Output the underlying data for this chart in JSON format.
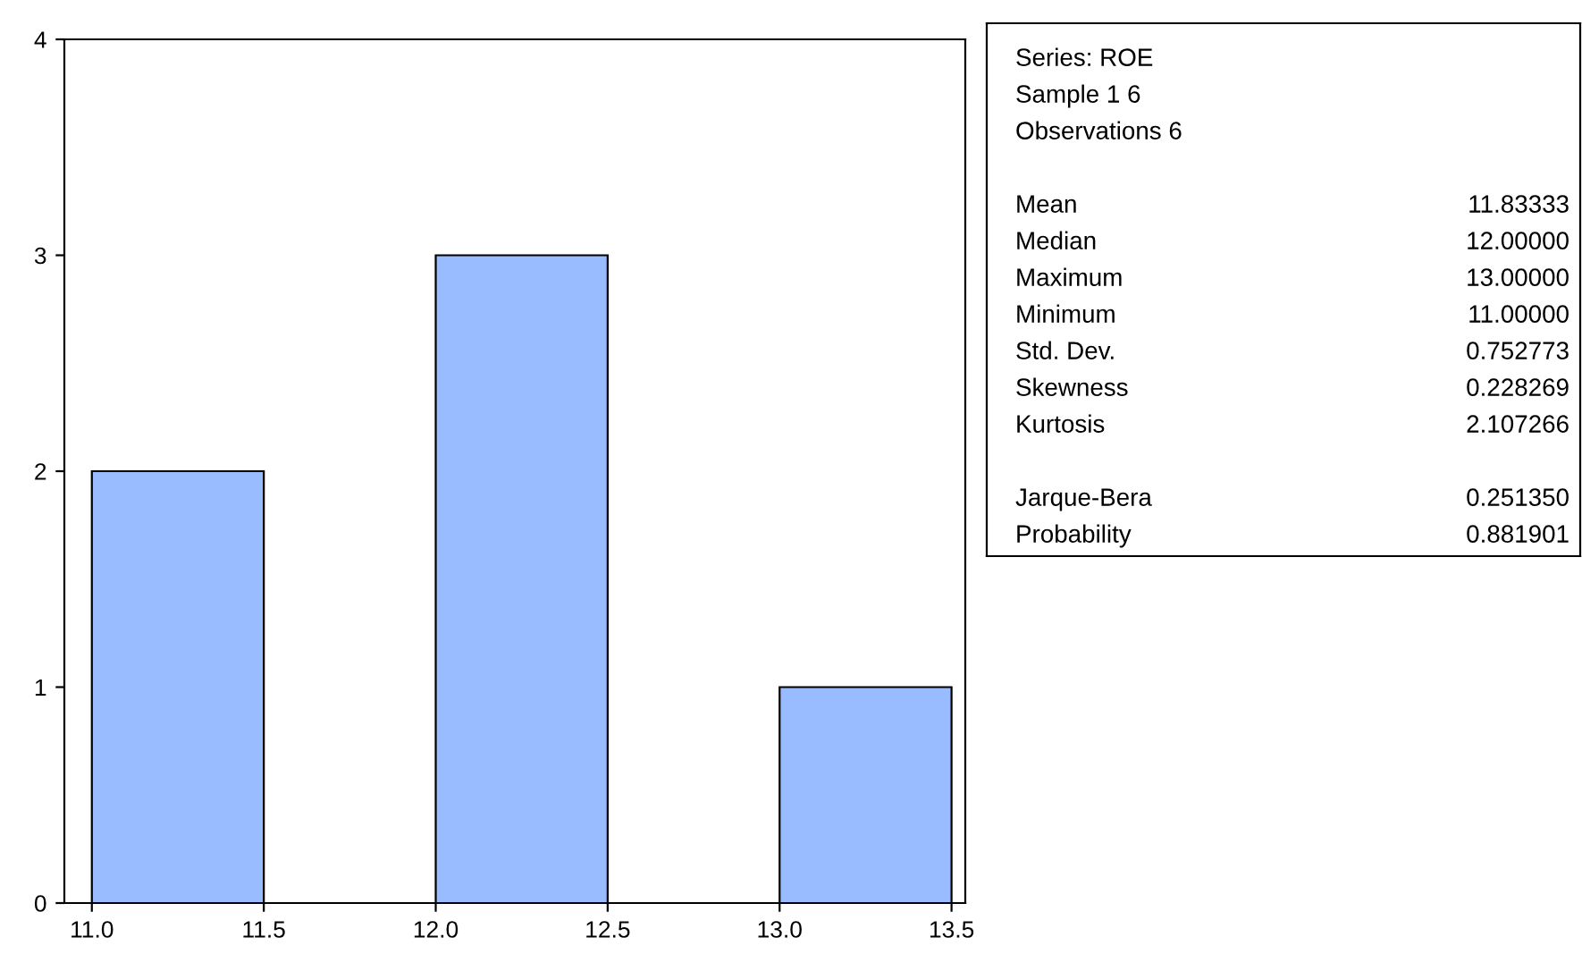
{
  "chart_data": [
    {
      "type": "histogram",
      "bins": [
        11.0,
        11.5,
        12.0,
        12.5,
        13.0,
        13.5
      ],
      "values": [
        2,
        0,
        3,
        0,
        1
      ],
      "color": "#99bbff",
      "xlim": [
        10.92,
        13.54
      ],
      "xticks": [
        {
          "value": 11.0,
          "label": "11.0"
        },
        {
          "value": 11.5,
          "label": "11.5"
        },
        {
          "value": 12.0,
          "label": "12.0"
        },
        {
          "value": 12.5,
          "label": "12.5"
        },
        {
          "value": 13.0,
          "label": "13.0"
        },
        {
          "value": 13.5,
          "label": "13.5"
        }
      ],
      "ylim": [
        0,
        4
      ],
      "yticks": [
        0,
        1,
        2,
        3,
        4
      ],
      "grid": false
    },
    {
      "type": "other",
      "annotations": [
        "Series: ROE",
        "Sample 1 6",
        "Observations 6"
      ],
      "categories": [
        "Mean",
        "Median",
        "Maximum",
        "Minimum",
        "Std. Dev.",
        "Skewness",
        "Kurtosis",
        "Jarque-Bera",
        "Probability"
      ],
      "value_labels": [
        "11.83333",
        "12.00000",
        "13.00000",
        "11.00000",
        "0.752773",
        "0.228269",
        "2.107266",
        "0.251350",
        "0.881901"
      ]
    }
  ]
}
